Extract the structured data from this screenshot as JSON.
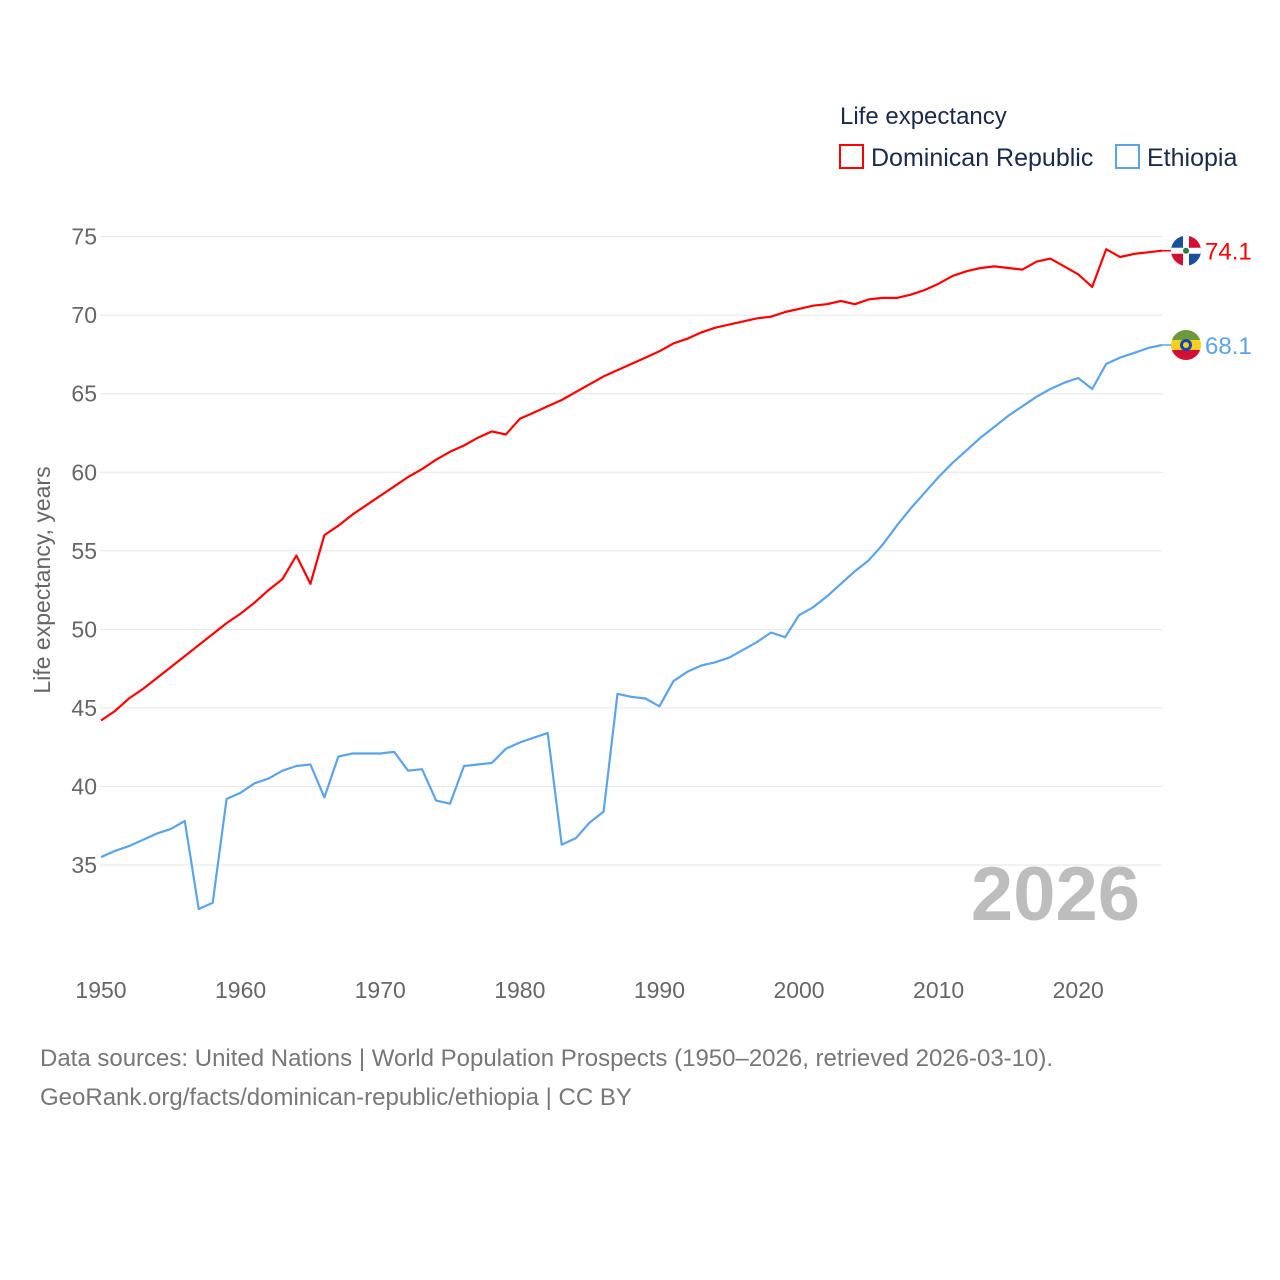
{
  "chart_data": {
    "type": "line",
    "title": "Life expectancy",
    "xlabel": "",
    "ylabel": "Life expectancy, years",
    "xlim": [
      1950,
      2026
    ],
    "ylim": [
      30,
      75
    ],
    "yticks": [
      35,
      40,
      45,
      50,
      55,
      60,
      65,
      70,
      75
    ],
    "xticks": [
      1950,
      1960,
      1970,
      1980,
      1990,
      2000,
      2010,
      2020
    ],
    "grid": true,
    "legend_position": "top-right",
    "year_label": "2026",
    "x_start": 1950,
    "series": [
      {
        "name": "Dominican Republic",
        "color": "#ff0000",
        "end_label": "74.1",
        "flag": "dominican-republic-flag",
        "values": [
          44.2,
          44.8,
          45.6,
          46.2,
          46.9,
          47.6,
          48.3,
          49.0,
          49.7,
          50.4,
          51.0,
          51.7,
          52.5,
          53.2,
          54.7,
          52.9,
          56.0,
          56.6,
          57.3,
          57.9,
          58.5,
          59.1,
          59.7,
          60.2,
          60.8,
          61.3,
          61.7,
          62.2,
          62.6,
          62.4,
          63.4,
          63.8,
          64.2,
          64.6,
          65.1,
          65.6,
          66.1,
          66.5,
          66.9,
          67.3,
          67.7,
          68.2,
          68.5,
          68.9,
          69.2,
          69.4,
          69.6,
          69.8,
          69.9,
          70.2,
          70.4,
          70.6,
          70.7,
          70.9,
          70.7,
          71.0,
          71.1,
          71.1,
          71.3,
          71.6,
          72.0,
          72.5,
          72.8,
          73.0,
          73.1,
          73.0,
          72.9,
          73.4,
          73.6,
          73.1,
          72.6,
          71.8,
          74.2,
          73.7,
          73.9,
          74.0,
          74.1
        ]
      },
      {
        "name": "Ethiopia",
        "color": "#5ba4e8",
        "end_label": "68.1",
        "flag": "ethiopia-flag",
        "values": [
          35.5,
          35.9,
          36.2,
          36.6,
          37.0,
          37.3,
          37.8,
          32.2,
          32.6,
          39.2,
          39.6,
          40.2,
          40.5,
          41.0,
          41.3,
          41.4,
          39.3,
          41.9,
          42.1,
          42.1,
          42.1,
          42.2,
          41.0,
          41.1,
          39.1,
          38.9,
          41.3,
          41.4,
          41.5,
          42.4,
          42.8,
          43.1,
          43.4,
          36.3,
          36.7,
          37.7,
          38.4,
          45.9,
          45.7,
          45.6,
          45.1,
          46.7,
          47.3,
          47.7,
          47.9,
          48.2,
          48.7,
          49.2,
          49.8,
          49.5,
          50.9,
          51.4,
          52.1,
          52.9,
          53.7,
          54.4,
          55.4,
          56.6,
          57.7,
          58.7,
          59.7,
          60.6,
          61.4,
          62.2,
          62.9,
          63.6,
          64.2,
          64.8,
          65.3,
          65.7,
          66.0,
          65.3,
          66.9,
          67.3,
          67.6,
          67.9,
          68.1
        ]
      }
    ]
  },
  "footer": {
    "line1": "Data sources: United Nations | World Population Prospects (1950–2026, retrieved 2026-03-10).",
    "line2": "GeoRank.org/facts/dominican-republic/ethiopia | CC BY"
  }
}
